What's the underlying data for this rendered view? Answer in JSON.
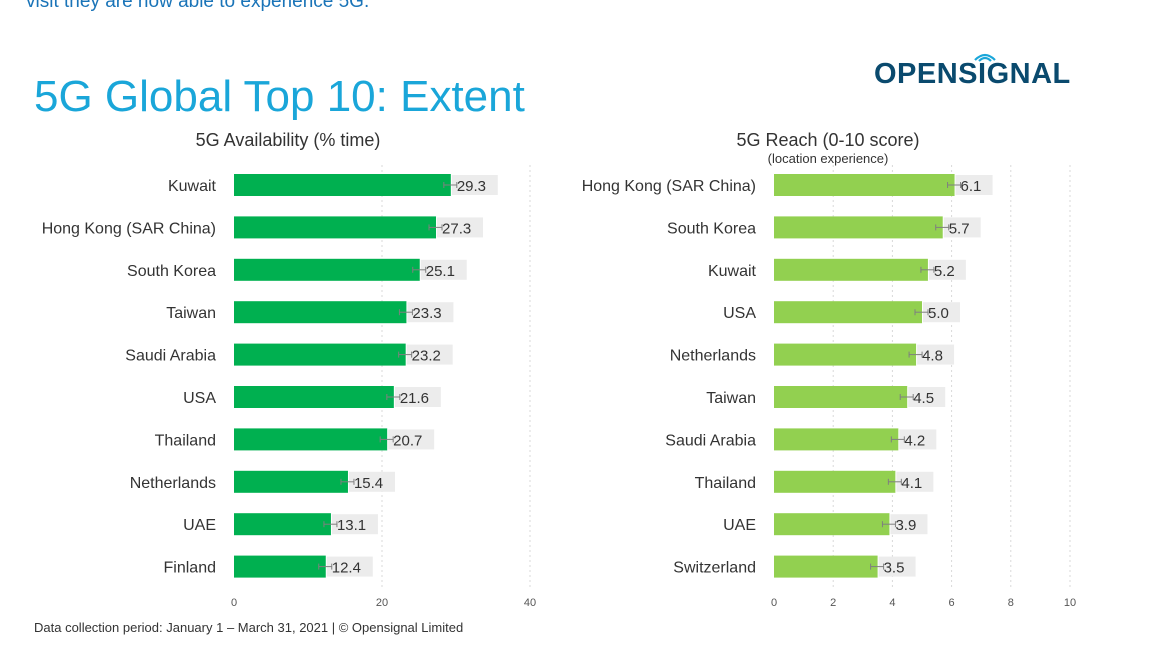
{
  "page": {
    "top_text": "visit they are now able to experience 5G.",
    "title": "5G Global Top 10: Extent",
    "logo_text": "OPENSIGNAL",
    "footnote": "Data collection period: January 1 – March 31, 2021  |  © Opensignal Limited"
  },
  "colors": {
    "title": "#1aa6d9",
    "logo": "#0a4a6e",
    "availability_bar": "#00b050",
    "reach_bar": "#92d050",
    "value_label_bg": "#ececec",
    "grid": "#d9d9d9"
  },
  "icons": {
    "logo_signal": "wifi-signal-icon"
  },
  "chart_data": [
    {
      "type": "bar",
      "orientation": "horizontal",
      "title": "5G Availability (% time)",
      "subtitle": "",
      "categories": [
        "Kuwait",
        "Hong Kong (SAR China)",
        "South Korea",
        "Taiwan",
        "Saudi Arabia",
        "USA",
        "Thailand",
        "Netherlands",
        "UAE",
        "Finland"
      ],
      "values": [
        29.3,
        27.3,
        25.1,
        23.3,
        23.2,
        21.6,
        20.7,
        15.4,
        13.1,
        12.4
      ],
      "value_labels": [
        "29.3",
        "27.3",
        "25.1",
        "23.3",
        "23.2",
        "21.6",
        "20.7",
        "15.4",
        "13.1",
        "12.4"
      ],
      "xlim": [
        0,
        40
      ],
      "xticks": [
        0,
        20,
        40
      ],
      "xtick_labels": [
        "0",
        "20",
        "40"
      ],
      "error_bars": true,
      "grid": "vertical dotted",
      "legend": "none"
    },
    {
      "type": "bar",
      "orientation": "horizontal",
      "title": "5G Reach (0-10 score)",
      "subtitle": "(location experience)",
      "categories": [
        "Hong Kong (SAR China)",
        "South Korea",
        "Kuwait",
        "USA",
        "Netherlands",
        "Taiwan",
        "Saudi Arabia",
        "Thailand",
        "UAE",
        "Switzerland"
      ],
      "values": [
        6.1,
        5.7,
        5.2,
        5.0,
        4.8,
        4.5,
        4.2,
        4.1,
        3.9,
        3.5
      ],
      "value_labels": [
        "6.1",
        "5.7",
        "5.2",
        "5.0",
        "4.8",
        "4.5",
        "4.2",
        "4.1",
        "3.9",
        "3.5"
      ],
      "xlim": [
        0,
        10
      ],
      "xticks": [
        0,
        2,
        4,
        6,
        8,
        10
      ],
      "xtick_labels": [
        "0",
        "2",
        "4",
        "6",
        "8",
        "10"
      ],
      "error_bars": true,
      "grid": "vertical dotted",
      "legend": "none"
    }
  ]
}
